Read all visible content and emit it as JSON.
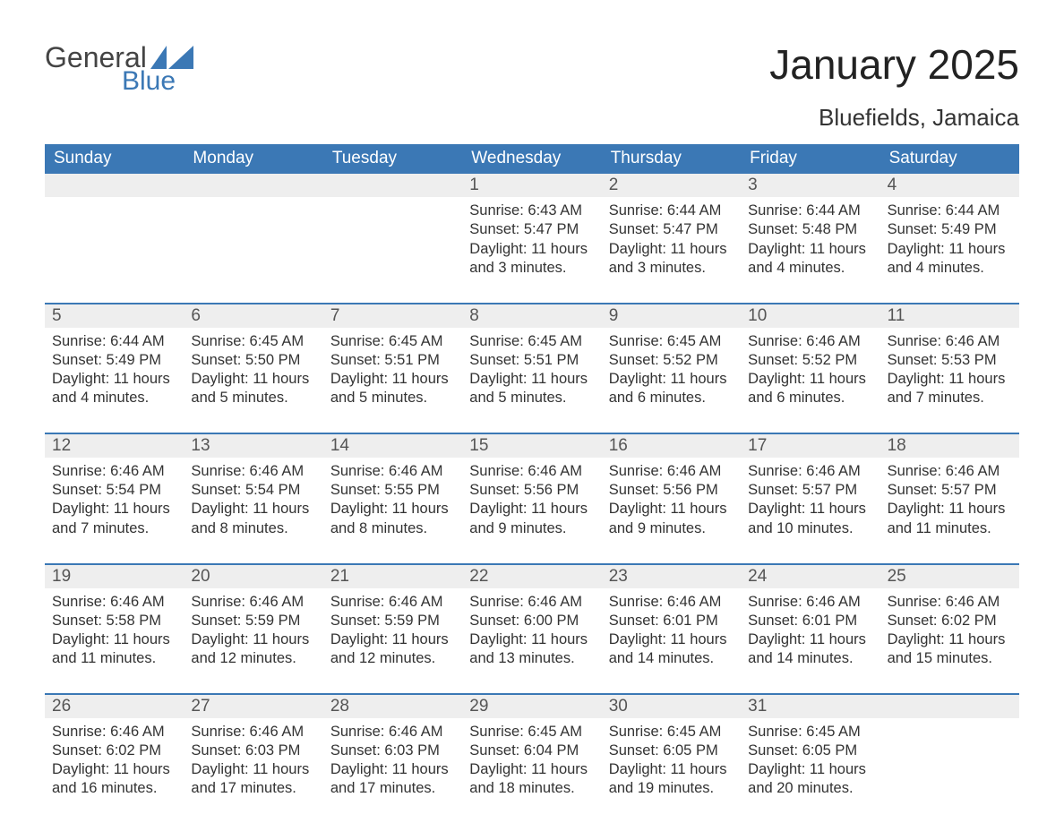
{
  "logo": {
    "text_main": "General",
    "text_sub": "Blue"
  },
  "colors": {
    "header_bg": "#3b78b5",
    "header_text": "#ffffff",
    "daynum_bg": "#eeeeee",
    "daynum_text": "#555555",
    "body_text": "#333333",
    "week_divider": "#3b78b5",
    "page_bg": "#ffffff",
    "logo_main": "#444444",
    "logo_sub": "#3b78b5"
  },
  "fonts": {
    "family": "Arial",
    "month_title_size_pt": 34,
    "location_size_pt": 20,
    "weekday_size_pt": 14,
    "daynum_size_pt": 14,
    "body_size_pt": 12
  },
  "title": "January 2025",
  "location": "Bluefields, Jamaica",
  "weekdays": [
    "Sunday",
    "Monday",
    "Tuesday",
    "Wednesday",
    "Thursday",
    "Friday",
    "Saturday"
  ],
  "labels": {
    "sunrise": "Sunrise:",
    "sunset": "Sunset:",
    "daylight": "Daylight:"
  },
  "weeks": [
    [
      null,
      null,
      null,
      {
        "n": "1",
        "sr": "6:43 AM",
        "ss": "5:47 PM",
        "dl": "11 hours and 3 minutes."
      },
      {
        "n": "2",
        "sr": "6:44 AM",
        "ss": "5:47 PM",
        "dl": "11 hours and 3 minutes."
      },
      {
        "n": "3",
        "sr": "6:44 AM",
        "ss": "5:48 PM",
        "dl": "11 hours and 4 minutes."
      },
      {
        "n": "4",
        "sr": "6:44 AM",
        "ss": "5:49 PM",
        "dl": "11 hours and 4 minutes."
      }
    ],
    [
      {
        "n": "5",
        "sr": "6:44 AM",
        "ss": "5:49 PM",
        "dl": "11 hours and 4 minutes."
      },
      {
        "n": "6",
        "sr": "6:45 AM",
        "ss": "5:50 PM",
        "dl": "11 hours and 5 minutes."
      },
      {
        "n": "7",
        "sr": "6:45 AM",
        "ss": "5:51 PM",
        "dl": "11 hours and 5 minutes."
      },
      {
        "n": "8",
        "sr": "6:45 AM",
        "ss": "5:51 PM",
        "dl": "11 hours and 5 minutes."
      },
      {
        "n": "9",
        "sr": "6:45 AM",
        "ss": "5:52 PM",
        "dl": "11 hours and 6 minutes."
      },
      {
        "n": "10",
        "sr": "6:46 AM",
        "ss": "5:52 PM",
        "dl": "11 hours and 6 minutes."
      },
      {
        "n": "11",
        "sr": "6:46 AM",
        "ss": "5:53 PM",
        "dl": "11 hours and 7 minutes."
      }
    ],
    [
      {
        "n": "12",
        "sr": "6:46 AM",
        "ss": "5:54 PM",
        "dl": "11 hours and 7 minutes."
      },
      {
        "n": "13",
        "sr": "6:46 AM",
        "ss": "5:54 PM",
        "dl": "11 hours and 8 minutes."
      },
      {
        "n": "14",
        "sr": "6:46 AM",
        "ss": "5:55 PM",
        "dl": "11 hours and 8 minutes."
      },
      {
        "n": "15",
        "sr": "6:46 AM",
        "ss": "5:56 PM",
        "dl": "11 hours and 9 minutes."
      },
      {
        "n": "16",
        "sr": "6:46 AM",
        "ss": "5:56 PM",
        "dl": "11 hours and 9 minutes."
      },
      {
        "n": "17",
        "sr": "6:46 AM",
        "ss": "5:57 PM",
        "dl": "11 hours and 10 minutes."
      },
      {
        "n": "18",
        "sr": "6:46 AM",
        "ss": "5:57 PM",
        "dl": "11 hours and 11 minutes."
      }
    ],
    [
      {
        "n": "19",
        "sr": "6:46 AM",
        "ss": "5:58 PM",
        "dl": "11 hours and 11 minutes."
      },
      {
        "n": "20",
        "sr": "6:46 AM",
        "ss": "5:59 PM",
        "dl": "11 hours and 12 minutes."
      },
      {
        "n": "21",
        "sr": "6:46 AM",
        "ss": "5:59 PM",
        "dl": "11 hours and 12 minutes."
      },
      {
        "n": "22",
        "sr": "6:46 AM",
        "ss": "6:00 PM",
        "dl": "11 hours and 13 minutes."
      },
      {
        "n": "23",
        "sr": "6:46 AM",
        "ss": "6:01 PM",
        "dl": "11 hours and 14 minutes."
      },
      {
        "n": "24",
        "sr": "6:46 AM",
        "ss": "6:01 PM",
        "dl": "11 hours and 14 minutes."
      },
      {
        "n": "25",
        "sr": "6:46 AM",
        "ss": "6:02 PM",
        "dl": "11 hours and 15 minutes."
      }
    ],
    [
      {
        "n": "26",
        "sr": "6:46 AM",
        "ss": "6:02 PM",
        "dl": "11 hours and 16 minutes."
      },
      {
        "n": "27",
        "sr": "6:46 AM",
        "ss": "6:03 PM",
        "dl": "11 hours and 17 minutes."
      },
      {
        "n": "28",
        "sr": "6:46 AM",
        "ss": "6:03 PM",
        "dl": "11 hours and 17 minutes."
      },
      {
        "n": "29",
        "sr": "6:45 AM",
        "ss": "6:04 PM",
        "dl": "11 hours and 18 minutes."
      },
      {
        "n": "30",
        "sr": "6:45 AM",
        "ss": "6:05 PM",
        "dl": "11 hours and 19 minutes."
      },
      {
        "n": "31",
        "sr": "6:45 AM",
        "ss": "6:05 PM",
        "dl": "11 hours and 20 minutes."
      },
      null
    ]
  ]
}
